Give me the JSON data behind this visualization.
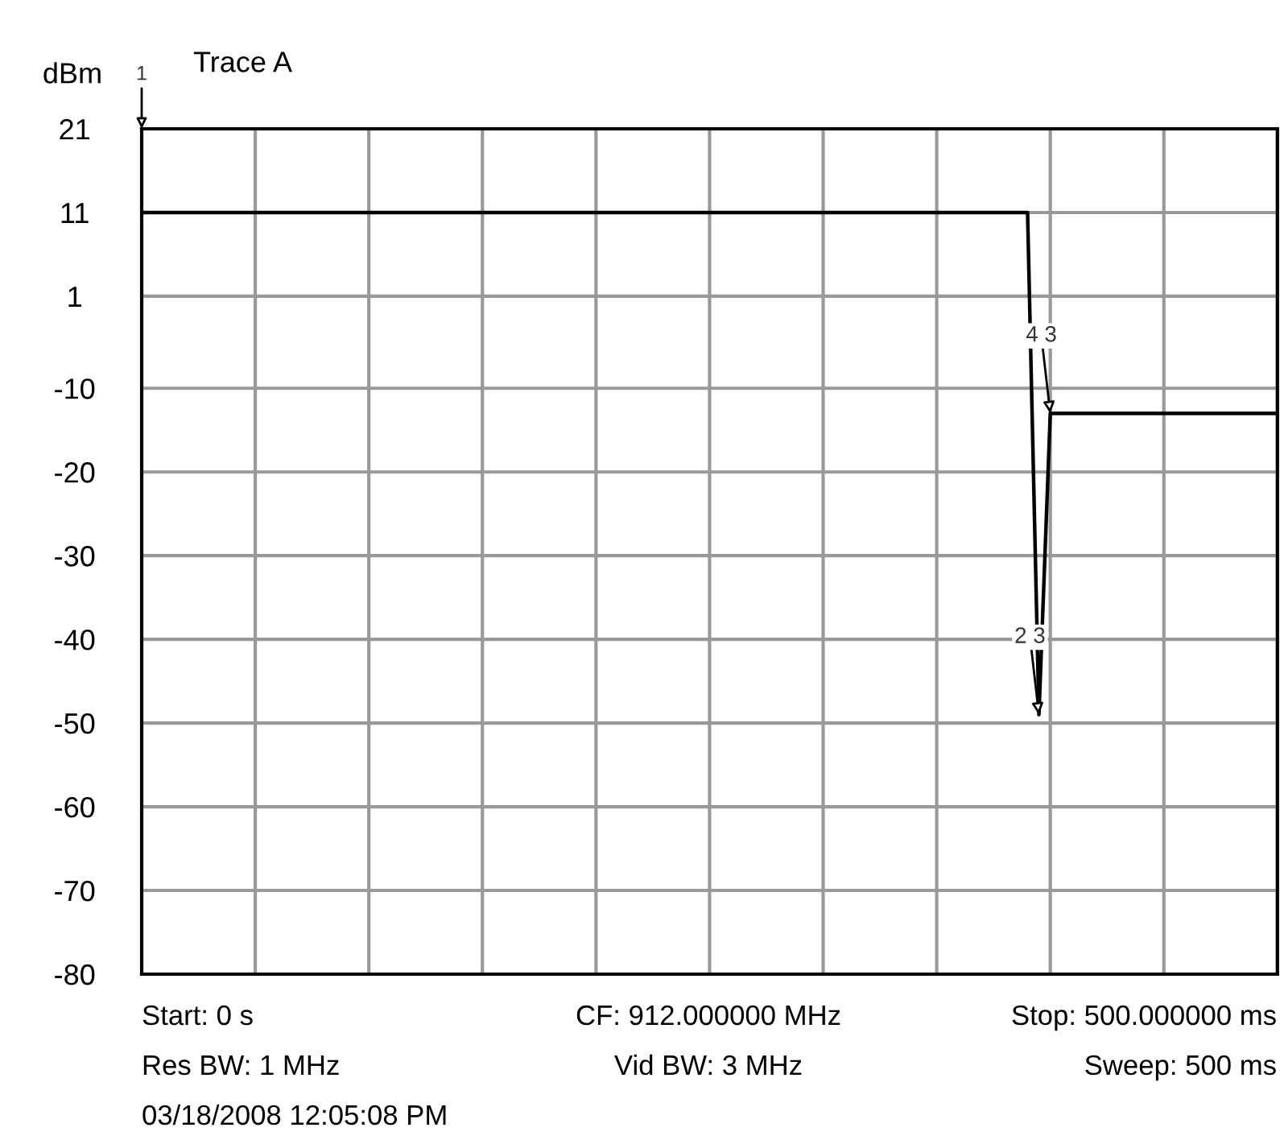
{
  "chart_data": {
    "type": "line",
    "subtitle": "Trace A",
    "ylabel": "dBm",
    "categories": [
      null,
      null,
      null,
      null,
      null,
      null,
      null,
      null,
      null,
      null,
      null,
      null,
      null,
      null,
      null,
      null,
      null,
      null,
      null,
      null,
      null,
      null,
      null,
      null,
      null,
      null,
      null,
      null,
      null,
      null,
      null,
      null,
      null,
      null,
      null,
      null,
      null,
      null,
      null,
      null,
      null,
      null,
      null,
      null,
      null,
      null,
      null,
      null,
      null,
      null,
      null,
      null,
      null,
      null,
      null,
      null,
      null,
      null,
      null,
      null,
      null,
      null,
      null,
      null,
      null,
      null,
      null,
      null,
      null,
      null,
      null,
      null,
      null,
      null,
      null,
      null,
      null,
      null,
      null,
      null,
      null,
      null,
      null,
      null,
      null,
      null,
      null,
      null,
      null,
      null,
      null,
      null,
      null,
      null,
      null,
      null,
      null,
      null,
      null,
      null,
      null
    ],
    "series": [
      {
        "color": "#000000",
        "values": [
          11,
          11,
          11,
          11,
          11,
          11,
          11,
          11,
          11,
          11,
          11,
          11,
          11,
          11,
          11,
          11,
          11,
          11,
          11,
          11,
          11,
          11,
          11,
          11,
          11,
          11,
          11,
          11,
          11,
          11,
          11,
          11,
          11,
          11,
          11,
          11,
          11,
          11,
          11,
          11,
          11,
          11,
          11,
          11,
          11,
          11,
          11,
          11,
          11,
          11,
          11,
          11,
          11,
          11,
          11,
          11,
          11,
          11,
          11,
          11,
          11,
          11,
          11,
          11,
          11,
          11,
          11,
          11,
          11,
          11,
          11,
          11,
          11,
          11,
          11,
          11,
          11,
          11,
          11,
          -49,
          -13,
          -13,
          -13,
          -13,
          -13,
          -13,
          -13,
          -13,
          -13,
          -13,
          -13,
          -13,
          -13,
          -13,
          -13,
          -13,
          -13,
          -13,
          -13,
          -13,
          -13
        ]
      }
    ],
    "ylim": [
      -80,
      21
    ],
    "yticks": [
      21,
      11,
      1,
      -10,
      -20,
      -30,
      -40,
      -50,
      -60,
      -70,
      -80
    ],
    "tick_labels": "y",
    "grid": true,
    "legend": false,
    "marker": "none",
    "line_style": "solid",
    "annotations": [
      "1",
      "2 3",
      "4 3",
      "Start: 0 s",
      "CF: 912.000000 MHz",
      "Stop: 500.000000 ms",
      "Res BW: 1 MHz",
      "Vid BW: 3 MHz",
      "Sweep: 500 ms",
      "03/18/2008 12:05:08 PM"
    ]
  }
}
